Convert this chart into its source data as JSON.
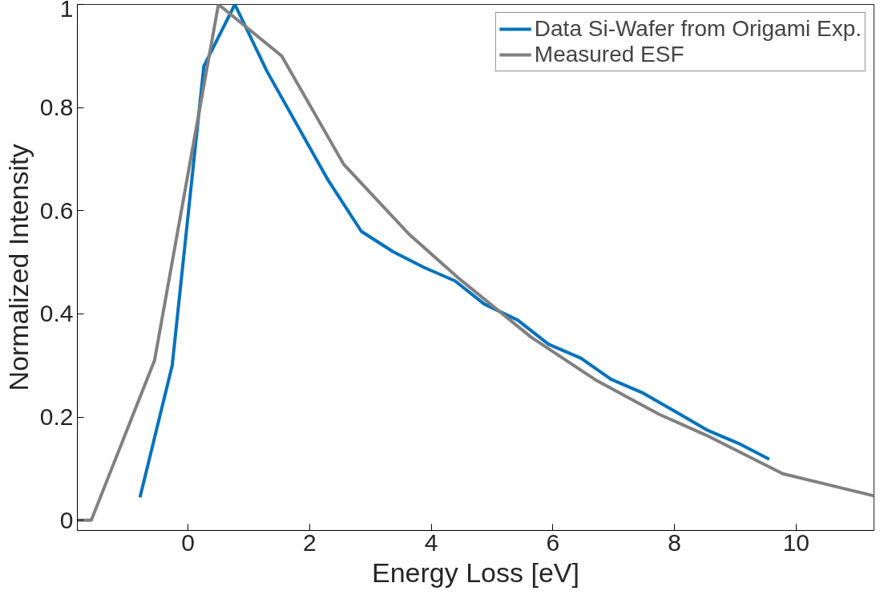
{
  "chart_data": {
    "type": "line",
    "xlabel": "Energy Loss [eV]",
    "ylabel": "Normalized Intensity",
    "xlim": [
      -1.82,
      11.28
    ],
    "ylim": [
      -0.02,
      1
    ],
    "xticks": [
      0,
      2,
      4,
      6,
      8,
      10
    ],
    "yticks": [
      0,
      0.2,
      0.4,
      0.6,
      0.8,
      1
    ],
    "grid": false,
    "legend": "top right",
    "line_style": "solid",
    "marker": "none",
    "series": [
      {
        "name": "Data Si-Wafer from Origami Exp.",
        "color": "#0072bd",
        "x": [
          -0.79,
          -0.26,
          0.26,
          0.77,
          1.3,
          2.3,
          2.85,
          3.38,
          3.88,
          4.39,
          4.87,
          5.42,
          5.93,
          6.46,
          6.96,
          7.49,
          8.02,
          8.53,
          9.05,
          9.56
        ],
        "values": [
          0.044,
          0.3,
          0.88,
          1.0,
          0.87,
          0.66,
          0.56,
          0.52,
          0.49,
          0.464,
          0.419,
          0.388,
          0.341,
          0.314,
          0.273,
          0.246,
          0.21,
          0.175,
          0.149,
          0.118
        ]
      },
      {
        "name": "Measured ESF",
        "color": "#808080",
        "x": [
          -1.82,
          -1.59,
          -0.55,
          0.5,
          1.54,
          2.56,
          3.63,
          4.44,
          5.64,
          6.7,
          7.75,
          8.57,
          9.78,
          11.28
        ],
        "values": [
          0,
          0,
          0.31,
          1.0,
          0.9,
          0.69,
          0.555,
          0.47,
          0.355,
          0.272,
          0.205,
          0.162,
          0.09,
          0.047
        ]
      }
    ]
  }
}
